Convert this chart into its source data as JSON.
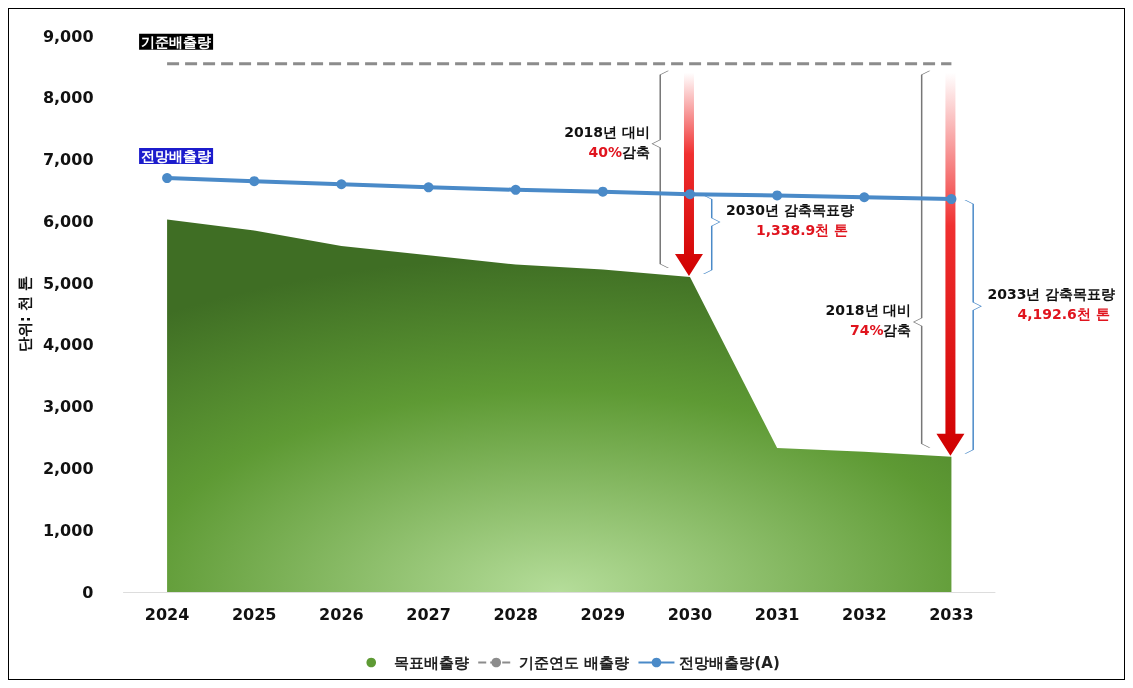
{
  "chart_data": {
    "type": "area",
    "ylabel": "단위: 천 톤",
    "categories": [
      "2024",
      "2025",
      "2026",
      "2027",
      "2028",
      "2029",
      "2030",
      "2031",
      "2032",
      "2033"
    ],
    "series": [
      {
        "name": "목표배출량",
        "color": "#5e9a34",
        "values": [
          6030,
          5850,
          5600,
          5450,
          5300,
          5220,
          5100,
          2330,
          2270,
          2190
        ]
      },
      {
        "name": "기준연도 배출량",
        "type": "line",
        "color": "#8c8c8c",
        "line_style": "dashed",
        "marker": "none",
        "values": [
          8550,
          8550,
          8550,
          8550,
          8550,
          8550,
          8550,
          8550,
          8550,
          8550
        ]
      },
      {
        "name": "전망배출량(A)",
        "type": "line",
        "color": "#4a8ac8",
        "marker": "circle",
        "values": [
          6700,
          6650,
          6600,
          6550,
          6510,
          6480,
          6440,
          6420,
          6390,
          6360
        ]
      }
    ],
    "ylim": [
      0,
      9000
    ],
    "yticks": [
      0,
      {
        "value": 1000,
        "label": "1,000"
      },
      {
        "value": 2000,
        "label": "2,000"
      },
      {
        "value": 3000,
        "label": "3,000"
      },
      {
        "value": 4000,
        "label": "4,000"
      },
      {
        "value": 5000,
        "label": "5,000"
      },
      {
        "value": 6000,
        "label": "6,000"
      },
      {
        "value": 7000,
        "label": "7,000"
      },
      {
        "value": 8000,
        "label": "8,000"
      },
      {
        "value": 9000,
        "label": "9,000"
      }
    ],
    "grid": false,
    "legend": "bottom",
    "annotations": [
      "기준배출량",
      "전망배출량",
      "2018년 대비",
      "40%",
      "감축",
      "2030년 감축목표량",
      "1,338.9천 톤",
      "2018년 대비",
      "74%",
      "감축",
      "2033년 감축목표량",
      "4,192.6천 톤"
    ]
  }
}
